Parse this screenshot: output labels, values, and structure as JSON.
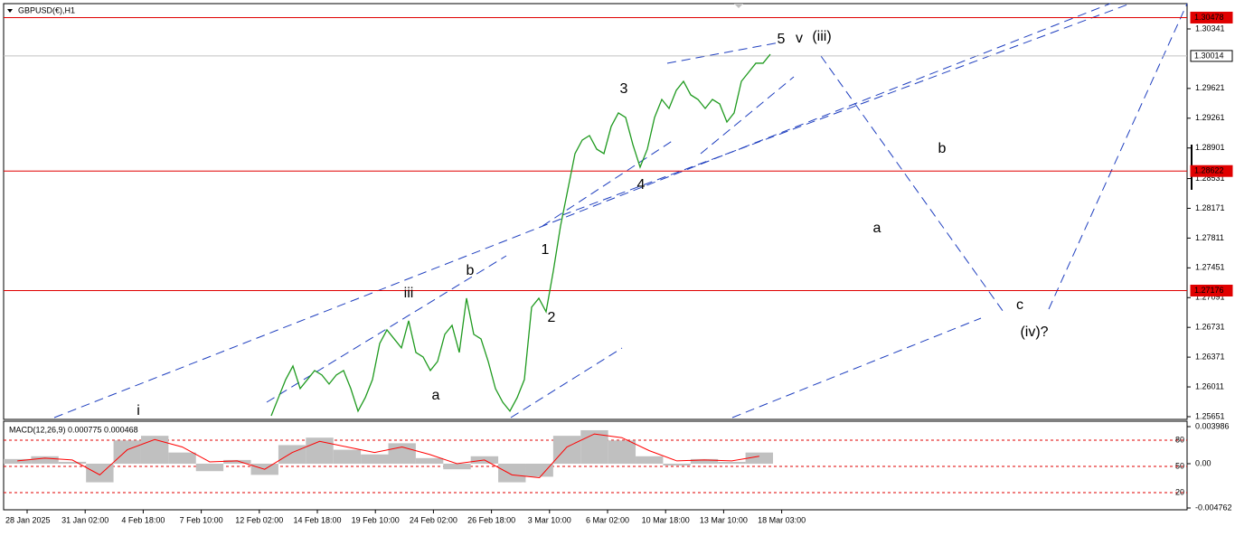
{
  "chart_data": [
    {
      "type": "price",
      "title": "GBPUSD(€),H1",
      "x_labels": [
        "28 Jan 2025",
        "31 Jan 02:00",
        "4 Feb 18:00",
        "7 Feb 10:00",
        "12 Feb 02:00",
        "14 Feb 18:00",
        "19 Feb 10:00",
        "24 Feb 02:00",
        "26 Feb 18:00",
        "3 Mar 10:00",
        "6 Mar 02:00",
        "10 Mar 18:00",
        "13 Mar 10:00",
        "18 Mar 03:00"
      ],
      "values": [
        1.25662,
        1.25881,
        1.261,
        1.26264,
        1.25991,
        1.261,
        1.26209,
        1.26155,
        1.26046,
        1.26155,
        1.26209,
        1.25991,
        1.25718,
        1.25881,
        1.261,
        1.26537,
        1.26701,
        1.26592,
        1.26483,
        1.26811,
        1.26428,
        1.26373,
        1.26209,
        1.26319,
        1.26647,
        1.26756,
        1.26428,
        1.27084,
        1.26647,
        1.26592,
        1.26319,
        1.25991,
        1.25827,
        1.25718,
        1.25881,
        1.261,
        1.26975,
        1.27084,
        1.2692,
        1.27412,
        1.27958,
        1.28395,
        1.28833,
        1.28997,
        1.29051,
        1.28887,
        1.28833,
        1.29161,
        1.29325,
        1.2927,
        1.28942,
        1.28669,
        1.28887,
        1.2927,
        1.29488,
        1.29379,
        1.29598,
        1.29707,
        1.29543,
        1.29488,
        1.29379,
        1.29488,
        1.29434,
        1.29215,
        1.29325,
        1.29707,
        1.29816,
        1.29926,
        1.29926,
        1.30035
      ],
      "color": "#1f9a1f",
      "ylim": [
        1.25618,
        1.30647
      ],
      "yticks": [
        1.30341,
        1.29621,
        1.29261,
        1.28901,
        1.28531,
        1.28171,
        1.27811,
        1.27451,
        1.27091,
        1.26731,
        1.26371,
        1.26011,
        1.25651
      ],
      "levels": [
        {
          "value": 1.30478,
          "color": "#e00000"
        },
        {
          "value": 1.28622,
          "color": "#e00000"
        },
        {
          "value": 1.27176,
          "color": "#e00000"
        },
        {
          "value": 1.30014,
          "color": "#c0c0c0"
        }
      ],
      "annotations": [
        {
          "text": "i",
          "color": "#e020e0"
        },
        {
          "text": "iii",
          "color": "#e020e0"
        },
        {
          "text": "b",
          "color": "#000000"
        },
        {
          "text": "a",
          "color": "#000000"
        },
        {
          "text": "1",
          "color": "#000000"
        },
        {
          "text": "2",
          "color": "#000000"
        },
        {
          "text": "3",
          "color": "#000000"
        },
        {
          "text": "4",
          "color": "#000000"
        },
        {
          "text": "5",
          "color": "#000000"
        },
        {
          "text": "v",
          "color": "#e020e0"
        },
        {
          "text": "(iii)",
          "color": "#1f2fa8"
        },
        {
          "text": "b",
          "color": "#e020e0"
        },
        {
          "text": "a",
          "color": "#e020e0"
        },
        {
          "text": "c",
          "color": "#e020e0"
        },
        {
          "text": "(iv)?",
          "color": "#1f2fa8"
        }
      ]
    },
    {
      "type": "macd",
      "title": "MACD(12,26,9) 0.000775 0.000468",
      "ylim": [
        -0.004956,
        0.004569
      ],
      "yticks": [
        0.003986,
        {
          "value": 0,
          "label": "0.00"
        },
        -0.004762
      ],
      "y2lim": [
        0.4,
        101.7
      ],
      "y2ticks": [
        20,
        50,
        80
      ],
      "series": [
        {
          "color": "#c0c0c0",
          "values": [
            0.0005,
            0.0008,
            0.0002,
            -0.002,
            0.0025,
            0.003,
            0.0012,
            -0.0008,
            0.0004,
            -0.0012,
            0.002,
            0.0028,
            0.0015,
            0.001,
            0.0022,
            0.0006,
            -0.0006,
            0.0008,
            -0.002,
            -0.0014,
            0.003,
            0.0036,
            0.0025,
            0.0008,
            -0.0002,
            0.0005,
            0.0002,
            0.0012
          ]
        },
        {
          "color": "#ff0000",
          "values": [
            0.0003,
            0.0006,
            0.0004,
            -0.0012,
            0.0015,
            0.0026,
            0.0018,
            0.0002,
            0.0003,
            -0.0006,
            0.0012,
            0.0024,
            0.0018,
            0.0012,
            0.0018,
            0.001,
            0.0,
            0.0004,
            -0.0012,
            -0.0015,
            0.0018,
            0.0032,
            0.0028,
            0.0014,
            0.0003,
            0.0004,
            0.0003,
            0.0008
          ]
        }
      ]
    }
  ]
}
